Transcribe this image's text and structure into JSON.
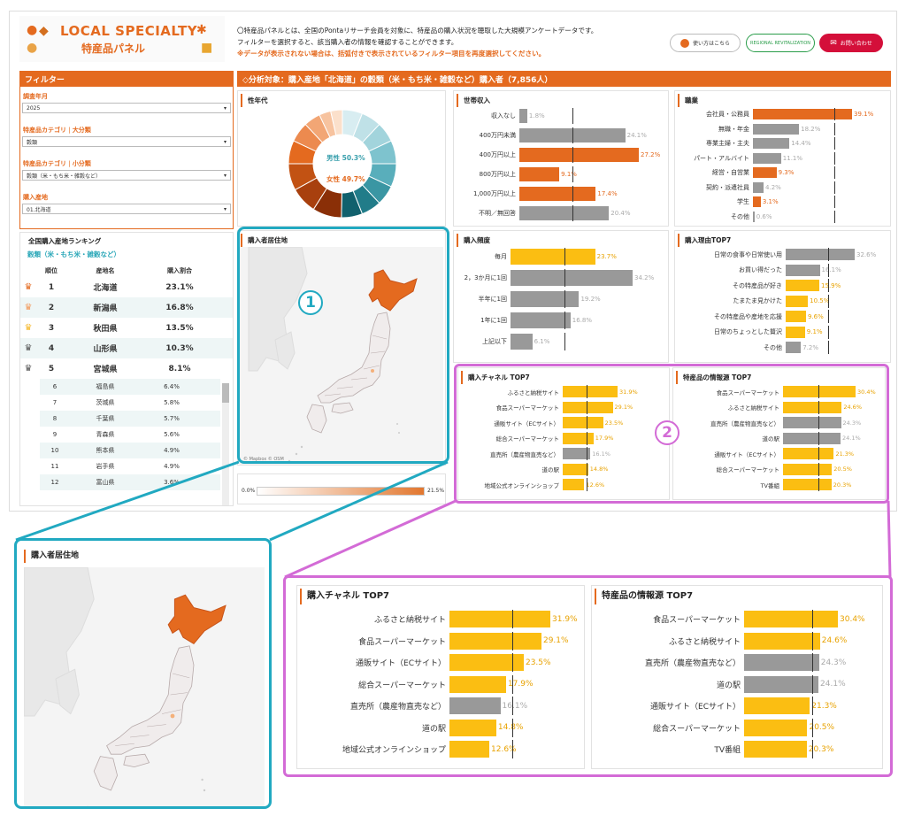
{
  "header": {
    "logo_title": "LOCAL SPECIALTY",
    "logo_sub": "特産品パネル",
    "intro_line1": "〇特産品パネルとは、全国のPontaリサーチ会員を対象に、特産品の購入状況を聴取した大規模アンケートデータです。",
    "intro_line2": "フィルターを選択すると、該当購入者の情報を確認することができます。",
    "intro_warn": "※データが表示されない場合は、括弧付きで表示されているフィルター項目を再度選択してください。",
    "btn_howto": "使い方はこちら",
    "btn_regional": "REGIONAL REVITALIZATION",
    "btn_contact": "お問い合わせ"
  },
  "filter": {
    "title": "フィルター",
    "year_label": "調査年月",
    "year_value": "2025",
    "cat_major_label": "特産品カテゴリ",
    "cat_major_tag": "大分類",
    "cat_major_value": "穀類",
    "cat_minor_label": "特産品カテゴリ",
    "cat_minor_tag": "小分類",
    "cat_minor_value": "穀類（米・もち米・雑穀など）",
    "region_label": "購入産地",
    "region_value": "01.北海道"
  },
  "analysis_title": "◇分析対象：購入産地「北海道」の穀類（米・もち米・雑穀など）購入者（7,856人）",
  "ranking": {
    "title": "全国購入産地ランキング",
    "subtitle": "穀類（米・もち米・雑穀など）",
    "col_rank": "順位",
    "col_name": "産地名",
    "col_pct": "購入割合",
    "top": [
      {
        "rank": "1",
        "name": "北海道",
        "pct": "23.1%",
        "crown": "#e46a1f"
      },
      {
        "rank": "2",
        "name": "新潟県",
        "pct": "16.8%",
        "crown": "#f29a5c"
      },
      {
        "rank": "3",
        "name": "秋田県",
        "pct": "13.5%",
        "crown": "#f6b92c"
      },
      {
        "rank": "4",
        "name": "山形県",
        "pct": "10.3%",
        "crown": "#555555"
      },
      {
        "rank": "5",
        "name": "宮城県",
        "pct": "8.1%",
        "crown": "#555555"
      }
    ],
    "rest": [
      {
        "rank": "6",
        "name": "福島県",
        "pct": "6.4%"
      },
      {
        "rank": "7",
        "name": "茨城県",
        "pct": "5.8%"
      },
      {
        "rank": "8",
        "name": "千葉県",
        "pct": "5.7%"
      },
      {
        "rank": "9",
        "name": "青森県",
        "pct": "5.6%"
      },
      {
        "rank": "10",
        "name": "熊本県",
        "pct": "4.9%"
      },
      {
        "rank": "11",
        "name": "岩手県",
        "pct": "4.9%"
      },
      {
        "rank": "12",
        "name": "富山県",
        "pct": "3.6%"
      }
    ]
  },
  "gender_age": {
    "title": "性年代",
    "male": "男性 50.3%",
    "female": "女性 49.7%"
  },
  "map": {
    "title": "購入者居住地",
    "credit": "© Mapbox © OSM",
    "legend_min": "0.0%",
    "legend_max": "21.5%"
  },
  "income": {
    "title": "世帯収入",
    "rows": [
      {
        "label": "収入なし",
        "value": 1.8,
        "text": "1.8%",
        "color": "#999999"
      },
      {
        "label": "400万円未満",
        "value": 24.1,
        "text": "24.1%",
        "color": "#999999"
      },
      {
        "label": "400万円以上",
        "value": 27.2,
        "text": "27.2%",
        "color": "#e46a1f"
      },
      {
        "label": "800万円以上",
        "value": 9.1,
        "text": "9.1%",
        "color": "#e46a1f"
      },
      {
        "label": "1,000万円以上",
        "value": 17.4,
        "text": "17.4%",
        "color": "#e46a1f"
      },
      {
        "label": "不明／無回答",
        "value": 20.4,
        "text": "20.4%",
        "color": "#999999"
      }
    ]
  },
  "job": {
    "title": "職業",
    "rows": [
      {
        "label": "会社員・公務員",
        "value": 39.1,
        "text": "39.1%",
        "color": "#e46a1f"
      },
      {
        "label": "無職・年金",
        "value": 18.2,
        "text": "18.2%",
        "color": "#999999"
      },
      {
        "label": "専業主婦・主夫",
        "value": 14.4,
        "text": "14.4%",
        "color": "#999999"
      },
      {
        "label": "パート・アルバイト",
        "value": 11.1,
        "text": "11.1%",
        "color": "#999999"
      },
      {
        "label": "経営・自営業",
        "value": 9.3,
        "text": "9.3%",
        "color": "#e46a1f"
      },
      {
        "label": "契約・派遣社員",
        "value": 4.2,
        "text": "4.2%",
        "color": "#999999"
      },
      {
        "label": "学生",
        "value": 3.1,
        "text": "3.1%",
        "color": "#e46a1f"
      },
      {
        "label": "その他",
        "value": 0.6,
        "text": "0.6%",
        "color": "#999999"
      }
    ]
  },
  "frequency": {
    "title": "購入頻度",
    "rows": [
      {
        "label": "毎月",
        "value": 23.7,
        "text": "23.7%",
        "color": "#fbbe12"
      },
      {
        "label": "2，3か月に1回",
        "value": 34.2,
        "text": "34.2%",
        "color": "#999999"
      },
      {
        "label": "半年に1回",
        "value": 19.2,
        "text": "19.2%",
        "color": "#999999"
      },
      {
        "label": "1年に1回",
        "value": 16.8,
        "text": "16.8%",
        "color": "#999999"
      },
      {
        "label": "上記以下",
        "value": 6.1,
        "text": "6.1%",
        "color": "#999999"
      }
    ]
  },
  "reason": {
    "title": "購入理由TOP7",
    "rows": [
      {
        "label": "日常の食事や日常使い用",
        "value": 32.6,
        "text": "32.6%",
        "color": "#999999"
      },
      {
        "label": "お買い得だった",
        "value": 16.1,
        "text": "16.1%",
        "color": "#999999"
      },
      {
        "label": "その特産品が好き",
        "value": 15.9,
        "text": "15.9%",
        "color": "#fbbe12"
      },
      {
        "label": "たまたま見かけた",
        "value": 10.5,
        "text": "10.5%",
        "color": "#fbbe12"
      },
      {
        "label": "その特産品や産地を応援",
        "value": 9.6,
        "text": "9.6%",
        "color": "#fbbe12"
      },
      {
        "label": "日常のちょっとした贅沢",
        "value": 9.1,
        "text": "9.1%",
        "color": "#fbbe12"
      },
      {
        "label": "その他",
        "value": 7.2,
        "text": "7.2%",
        "color": "#999999"
      }
    ]
  },
  "channel": {
    "title": "購入チャネル TOP7",
    "rows": [
      {
        "label": "ふるさと納税サイト",
        "value": 31.9,
        "text": "31.9%",
        "color": "#fbbe12"
      },
      {
        "label": "食品スーパーマーケット",
        "value": 29.1,
        "text": "29.1%",
        "color": "#fbbe12"
      },
      {
        "label": "通販サイト（ECサイト）",
        "value": 23.5,
        "text": "23.5%",
        "color": "#fbbe12"
      },
      {
        "label": "総合スーパーマーケット",
        "value": 17.9,
        "text": "17.9%",
        "color": "#fbbe12"
      },
      {
        "label": "直売所（農産物直売など）",
        "value": 16.1,
        "text": "16.1%",
        "color": "#999999"
      },
      {
        "label": "道の駅",
        "value": 14.8,
        "text": "14.8%",
        "color": "#fbbe12"
      },
      {
        "label": "地域公式オンラインショップ",
        "value": 12.6,
        "text": "12.6%",
        "color": "#fbbe12"
      }
    ]
  },
  "info_source": {
    "title": "特産品の情報源 TOP7",
    "rows": [
      {
        "label": "食品スーパーマーケット",
        "value": 30.4,
        "text": "30.4%",
        "color": "#fbbe12"
      },
      {
        "label": "ふるさと納税サイト",
        "value": 24.6,
        "text": "24.6%",
        "color": "#fbbe12"
      },
      {
        "label": "直売所（農産物直売など）",
        "value": 24.3,
        "text": "24.3%",
        "color": "#999999"
      },
      {
        "label": "道の駅",
        "value": 24.1,
        "text": "24.1%",
        "color": "#999999"
      },
      {
        "label": "通販サイト（ECサイト）",
        "value": 21.3,
        "text": "21.3%",
        "color": "#fbbe12"
      },
      {
        "label": "総合スーパーマーケット",
        "value": 20.5,
        "text": "20.5%",
        "color": "#fbbe12"
      },
      {
        "label": "TV番組",
        "value": 20.3,
        "text": "20.3%",
        "color": "#fbbe12"
      }
    ]
  },
  "callouts": {
    "one": "1",
    "two": "2"
  },
  "colors": {
    "accent": "#e46a1f",
    "teal": "#21a9c1",
    "magenta": "#d36bd6",
    "yellow": "#fbbe12",
    "gray": "#999999"
  }
}
